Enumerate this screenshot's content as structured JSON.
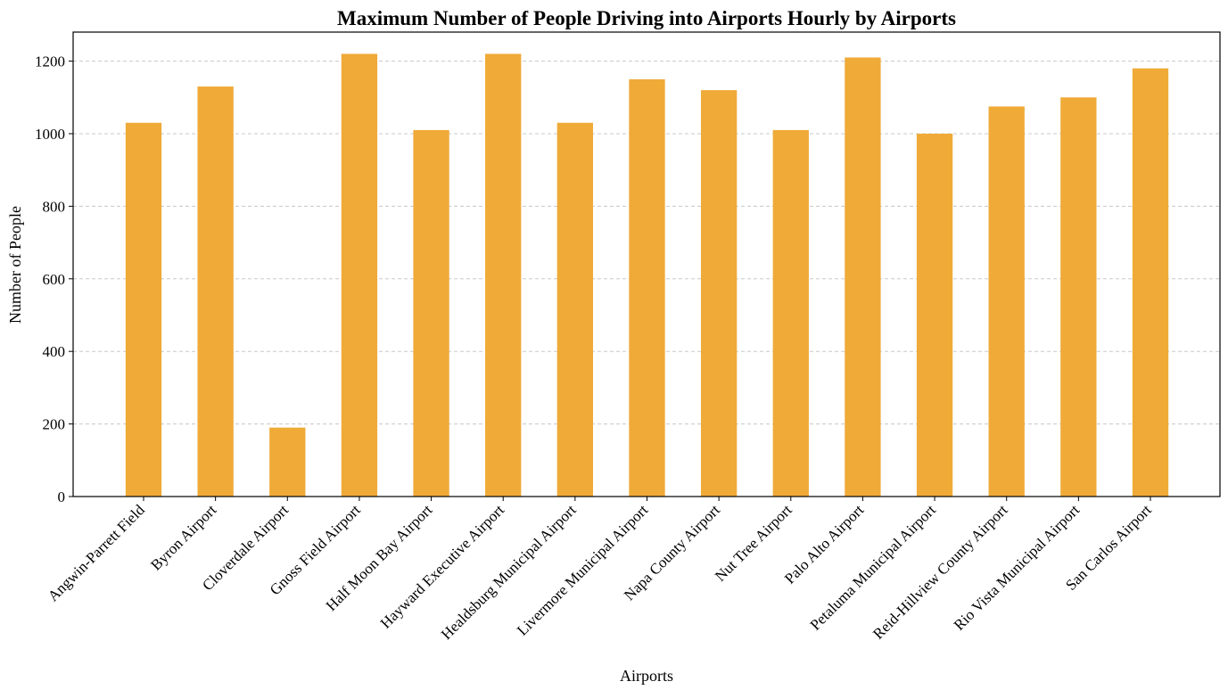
{
  "chart_data": {
    "type": "bar",
    "title": "Maximum Number of People Driving into Airports Hourly by Airports",
    "xlabel": "Airports",
    "ylabel": "Number of People",
    "categories": [
      "Angwin-Parrett Field",
      "Byron Airport",
      "Cloverdale Airport",
      "Gnoss Field Airport",
      "Half Moon Bay Airport",
      "Hayward Executive Airport",
      "Healdsburg Municipal Airport",
      "Livermore Municipal Airport",
      "Napa County Airport",
      "Nut Tree Airport",
      "Palo Alto Airport",
      "Petaluma Municipal Airport",
      "Reid-Hillview County Airport",
      "Rio Vista Municipal Airport",
      "San Carlos Airport"
    ],
    "values": [
      1030,
      1130,
      190,
      1220,
      1010,
      1220,
      1030,
      1150,
      1120,
      1010,
      1210,
      1000,
      1075,
      1100,
      1180
    ],
    "ylim": [
      0,
      1280
    ],
    "yticks": [
      0,
      200,
      400,
      600,
      800,
      1000,
      1200
    ],
    "grid": "y-dashed",
    "bar_color": "#EFAA38",
    "grid_color": "#c8c8c8",
    "legend": "none"
  }
}
